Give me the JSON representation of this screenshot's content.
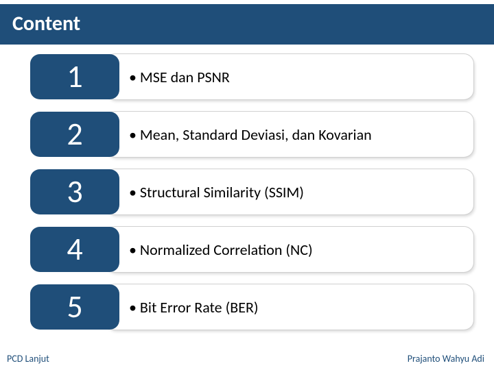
{
  "title": "Content",
  "items": [
    {
      "num": "1",
      "label": "• MSE dan PSNR"
    },
    {
      "num": "2",
      "label": "• Mean, Standard Deviasi, dan Kovarian"
    },
    {
      "num": "3",
      "label": "• Structural Similarity (SSIM)"
    },
    {
      "num": "4",
      "label": "• Normalized Correlation (NC)"
    },
    {
      "num": "5",
      "label": "• Bit Error Rate (BER)"
    }
  ],
  "footer": {
    "left": "PCD Lanjut",
    "right": "Prajanto Wahyu Adi"
  },
  "colors": {
    "brand": "#1f4e79",
    "bg": "#ffffff",
    "text": "#000000"
  }
}
